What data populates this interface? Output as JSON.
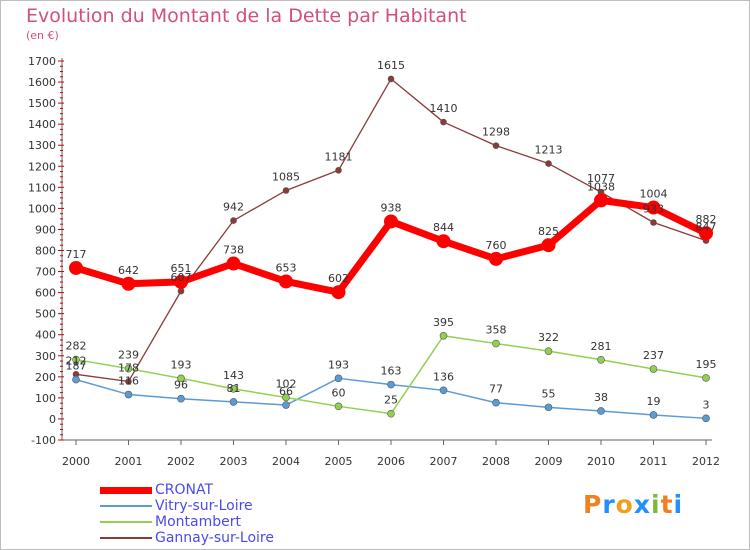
{
  "chart_data": {
    "type": "line",
    "title": "Evolution du Montant de la Dette par Habitant",
    "subtitle": "(en €)",
    "x": [
      "2000",
      "2001",
      "2002",
      "2003",
      "2004",
      "2005",
      "2006",
      "2007",
      "2008",
      "2009",
      "2010",
      "2011",
      "2012"
    ],
    "yticks": [
      "-100",
      "0",
      "100",
      "200",
      "300",
      "400",
      "500",
      "600",
      "700",
      "800",
      "900",
      "1000",
      "1100",
      "1200",
      "1300",
      "1400",
      "1500",
      "1600",
      "1700"
    ],
    "ylim": [
      -100,
      1700
    ],
    "grid": false,
    "legend_position": "bottom-left",
    "series": [
      {
        "name": "CRONAT",
        "color": "#ff0000",
        "values": [
          717,
          642,
          651,
          738,
          653,
          602,
          938,
          844,
          760,
          825,
          1038,
          1004,
          882
        ]
      },
      {
        "name": "Vitry-sur-Loire",
        "color": "#5b9bd5",
        "values": [
          187,
          116,
          96,
          81,
          66,
          193,
          163,
          136,
          77,
          55,
          38,
          19,
          3
        ]
      },
      {
        "name": "Montambert",
        "color": "#92d050",
        "values": [
          282,
          239,
          193,
          143,
          102,
          60,
          25,
          395,
          358,
          322,
          281,
          237,
          195
        ]
      },
      {
        "name": "Gannay-sur-Loire",
        "color": "#8b3a3a",
        "values": [
          212,
          178,
          607,
          942,
          1085,
          1181,
          1615,
          1410,
          1298,
          1213,
          1077,
          933,
          847
        ]
      }
    ]
  },
  "logo": {
    "letters": [
      "P",
      "r",
      "o",
      "x",
      "i",
      "t",
      "i"
    ],
    "colors": [
      "#f08020",
      "#1e90ff",
      "#f0a020",
      "#1e90ff",
      "#7cbb3a",
      "#f08020",
      "#1e90ff"
    ]
  }
}
